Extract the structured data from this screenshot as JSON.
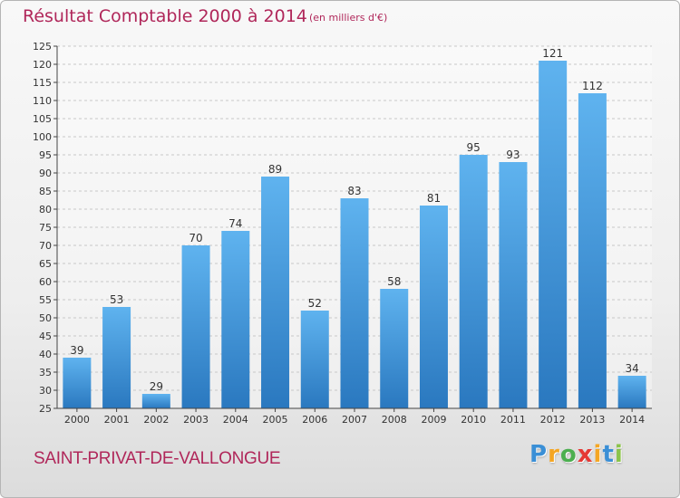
{
  "title": "Résultat Comptable 2000 à 2014",
  "subtitle": "(en milliers d'€)",
  "commune": "SAINT-PRIVAT-DE-VALLONGUE",
  "logo": {
    "letters": [
      "P",
      "r",
      "o",
      "x",
      "i",
      "t",
      "i"
    ],
    "colors": [
      "#3a8fd6",
      "#f5a623",
      "#4caf50",
      "#e53935",
      "#f5a623",
      "#3a8fd6",
      "#8bc34a"
    ]
  },
  "colors": {
    "title": "#b0275a",
    "bar_top": "#5fb3ef",
    "bar_bottom": "#2a78bf",
    "axis": "#444444"
  },
  "chart_data": {
    "type": "bar",
    "categories": [
      "2000",
      "2001",
      "2002",
      "2003",
      "2004",
      "2005",
      "2006",
      "2007",
      "2008",
      "2009",
      "2010",
      "2011",
      "2012",
      "2013",
      "2014"
    ],
    "values": [
      39,
      53,
      29,
      70,
      74,
      89,
      52,
      83,
      58,
      81,
      95,
      93,
      121,
      112,
      34
    ],
    "ylim": [
      25,
      125
    ],
    "yticks": [
      25,
      30,
      35,
      40,
      45,
      50,
      55,
      60,
      65,
      70,
      75,
      80,
      85,
      90,
      95,
      100,
      105,
      110,
      115,
      120,
      125
    ],
    "grid": true,
    "data_labels": true
  }
}
